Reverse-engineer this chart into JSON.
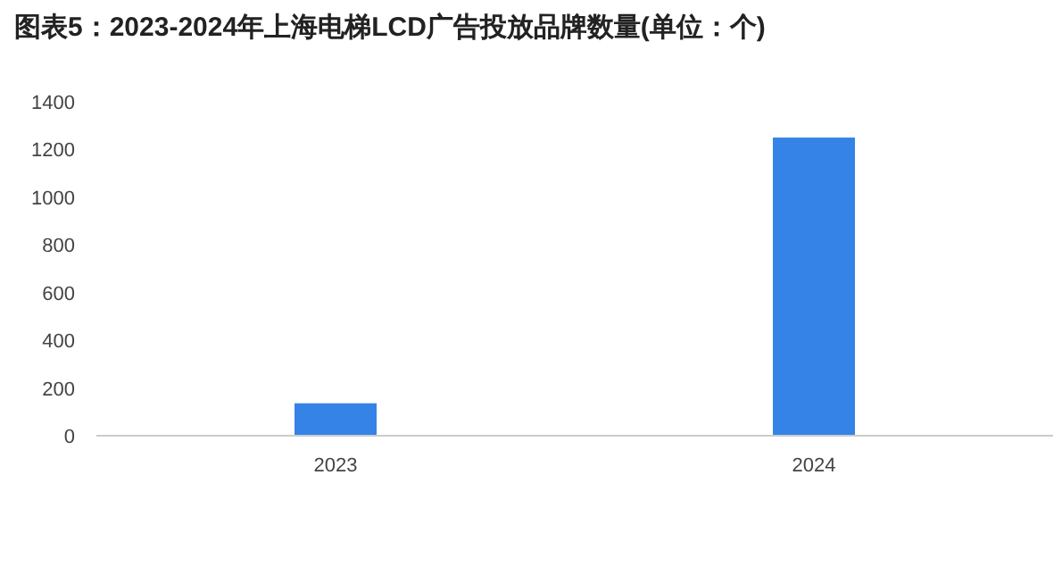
{
  "chart_data": {
    "type": "bar",
    "title": "图表5：2023-2024年上海电梯LCD广告投放品牌数量(单位：个)",
    "categories": [
      "2023",
      "2024"
    ],
    "series": [
      {
        "color": "#3583e6",
        "values": [
          136,
          1250
        ]
      }
    ],
    "ylim": [
      0,
      1400
    ],
    "yticks": [
      0,
      200,
      400,
      600,
      800,
      1000,
      1200,
      1400
    ],
    "grid": false
  }
}
